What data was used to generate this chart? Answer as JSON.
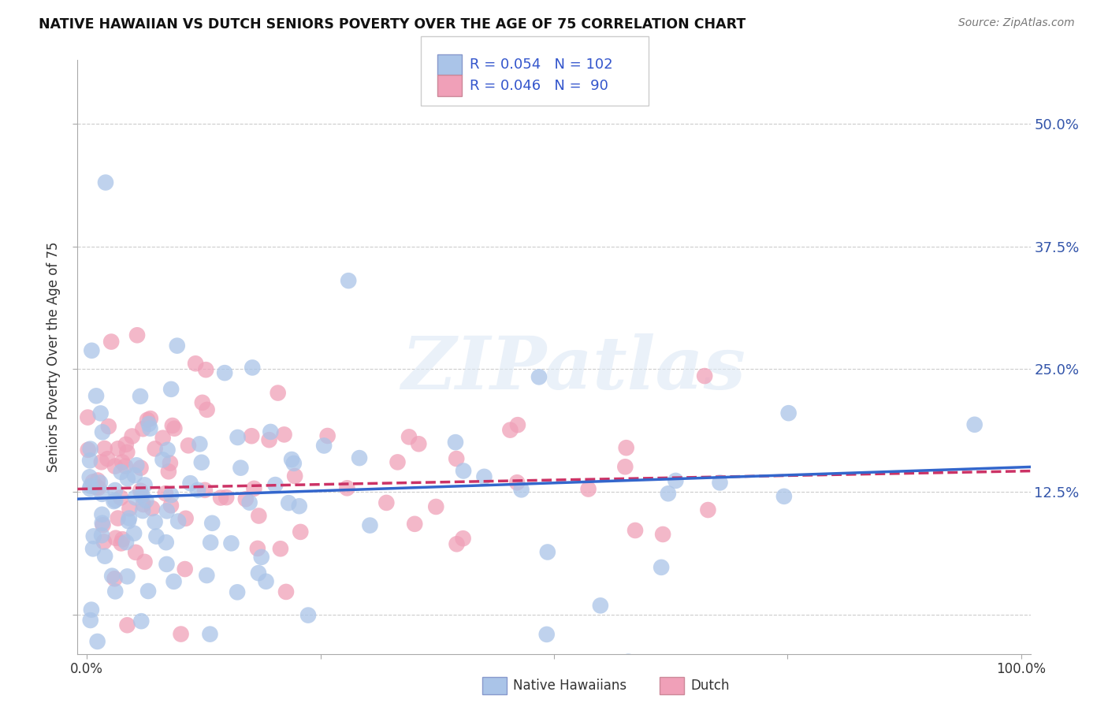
{
  "title": "NATIVE HAWAIIAN VS DUTCH SENIORS POVERTY OVER THE AGE OF 75 CORRELATION CHART",
  "source": "Source: ZipAtlas.com",
  "ylabel": "Seniors Poverty Over the Age of 75",
  "xlim": [
    -0.01,
    1.01
  ],
  "ylim": [
    -0.04,
    0.565
  ],
  "xticks": [
    0.0,
    0.25,
    0.5,
    0.75,
    1.0
  ],
  "xticklabels": [
    "0.0%",
    "",
    "",
    "",
    "100.0%"
  ],
  "yticks": [
    0.0,
    0.125,
    0.25,
    0.375,
    0.5
  ],
  "yticklabels": [
    "",
    "12.5%",
    "25.0%",
    "37.5%",
    "50.0%"
  ],
  "nh_color": "#aac4e8",
  "dutch_color": "#f0a0b8",
  "R_nh": 0.054,
  "N_nh": 102,
  "R_dutch": 0.046,
  "N_dutch": 90,
  "watermark_text": "ZIPatlas",
  "nh_line_color": "#3366cc",
  "dutch_line_color": "#cc3366",
  "legend_label_nh": "Native Hawaiians",
  "legend_label_dutch": "Dutch",
  "nh_reg_intercept": 0.118,
  "nh_reg_slope": 0.032,
  "dutch_reg_intercept": 0.128,
  "dutch_reg_slope": 0.018
}
